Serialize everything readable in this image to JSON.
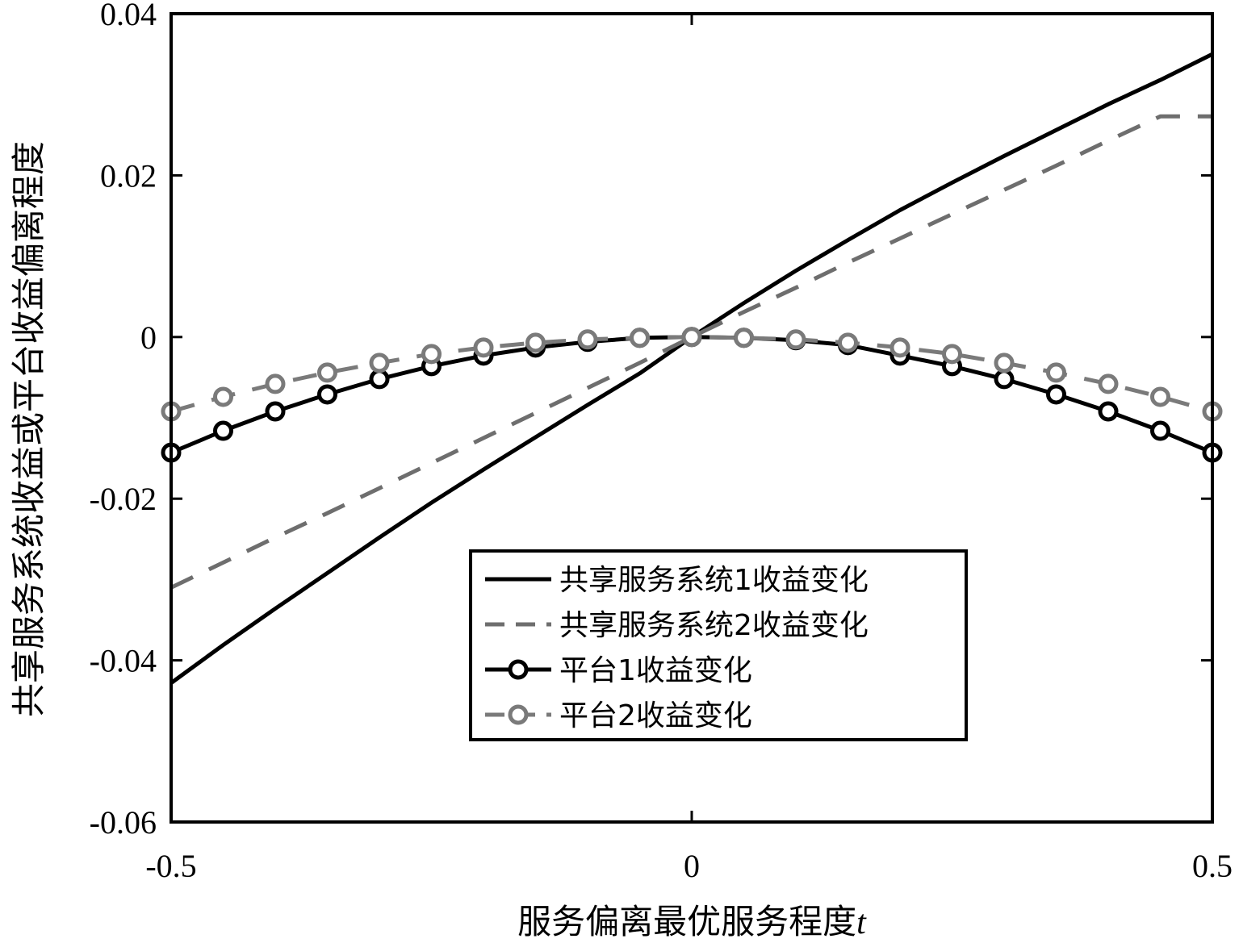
{
  "chart_data": {
    "type": "line",
    "title": "",
    "xlabel": "服务偏离最优服务程度",
    "xlabel_var": "t",
    "ylabel": "共享服务系统收益或平台收益偏离程度",
    "xlim": [
      -0.5,
      0.5
    ],
    "ylim": [
      -0.06,
      0.04
    ],
    "xticks": [
      -0.5,
      0,
      0.5
    ],
    "xtick_labels": [
      "-0.5",
      "0",
      "0.5"
    ],
    "yticks": [
      -0.06,
      -0.04,
      -0.02,
      0,
      0.02,
      0.04
    ],
    "ytick_labels": [
      "-0.06",
      "-0.04",
      "-0.02",
      "0",
      "0.02",
      "0.04"
    ],
    "grid": false,
    "legend_position": "lower-center",
    "x": [
      -0.5,
      -0.45,
      -0.4,
      -0.35,
      -0.3,
      -0.25,
      -0.2,
      -0.15,
      -0.1,
      -0.05,
      0,
      0.05,
      0.1,
      0.15,
      0.2,
      0.25,
      0.3,
      0.35,
      0.4,
      0.45,
      0.5
    ],
    "series": [
      {
        "name": "共享服务系统1收益变化",
        "style": "solid",
        "marker": "none",
        "color": "#000000",
        "values": [
          -0.0428,
          -0.0381,
          -0.0336,
          -0.0292,
          -0.0248,
          -0.0205,
          -0.0164,
          -0.0124,
          -0.0084,
          -0.0045,
          0.0,
          0.0042,
          0.0082,
          0.012,
          0.0157,
          0.0191,
          0.0224,
          0.0256,
          0.0288,
          0.0318,
          0.035
        ]
      },
      {
        "name": "共享服务系统2收益变化",
        "style": "dashed",
        "marker": "none",
        "color": "#6e6e6e",
        "values": [
          -0.031,
          -0.0279,
          -0.0248,
          -0.0218,
          -0.0187,
          -0.0156,
          -0.0125,
          -0.0094,
          -0.0063,
          -0.0032,
          0.0,
          0.0031,
          0.0061,
          0.0092,
          0.0122,
          0.0152,
          0.0182,
          0.0212,
          0.0243,
          0.0273,
          0.0273
        ]
      },
      {
        "name": "平台1收益变化",
        "style": "solid",
        "marker": "circle",
        "color": "#000000",
        "values": [
          -0.0143,
          -0.0116,
          -0.0092,
          -0.0071,
          -0.0052,
          -0.0036,
          -0.0023,
          -0.0013,
          -0.0006,
          -0.0001,
          0.0,
          -0.0001,
          -0.0004,
          -0.001,
          -0.0023,
          -0.0036,
          -0.0052,
          -0.0071,
          -0.0092,
          -0.0116,
          -0.0143
        ]
      },
      {
        "name": "平台2收益变化",
        "style": "dashed",
        "marker": "circle",
        "color": "#7a7a7a",
        "values": [
          -0.0092,
          -0.0074,
          -0.0058,
          -0.0044,
          -0.0032,
          -0.0021,
          -0.0013,
          -0.0007,
          -0.0003,
          -0.0001,
          0.0,
          -0.0001,
          -0.0003,
          -0.0007,
          -0.0013,
          -0.0021,
          -0.0032,
          -0.0044,
          -0.0058,
          -0.0074,
          -0.0092
        ]
      }
    ]
  }
}
